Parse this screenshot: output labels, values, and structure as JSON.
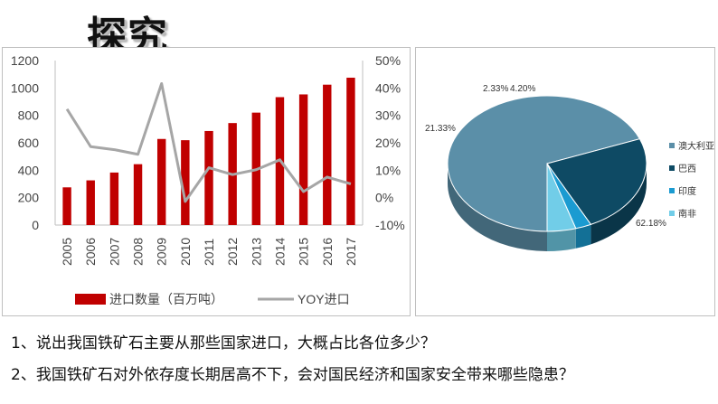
{
  "slide": {
    "title": "探究"
  },
  "questions": [
    "1、说出我国铁矿石主要从那些国家进口，大概占比各位多少？",
    "2、我国铁矿石对外依存度长期居高不下，会对国民经济和国家安全带来哪些隐患？"
  ],
  "colors": {
    "bar": "#c00000",
    "line": "#a6a6a6",
    "pie": [
      "#5b8fa8",
      "#0e4a64",
      "#1b9bd1",
      "#71cde8"
    ]
  },
  "chart_data": [
    {
      "type": "bar",
      "categories": [
        "2005",
        "2006",
        "2007",
        "2008",
        "2009",
        "2010",
        "2011",
        "2012",
        "2013",
        "2014",
        "2015",
        "2016",
        "2017"
      ],
      "series": [
        {
          "name": "进口数量（百万吨）",
          "type": "bar",
          "axis": "left",
          "values": [
            275,
            326,
            383,
            444,
            628,
            619,
            686,
            744,
            820,
            933,
            953,
            1024,
            1075
          ]
        },
        {
          "name": "YOY进口",
          "type": "line",
          "axis": "right",
          "values": [
            32.3,
            18.6,
            17.5,
            15.8,
            41.6,
            -1.4,
            10.9,
            8.4,
            10.2,
            13.8,
            2.2,
            7.5,
            5.0
          ]
        }
      ],
      "y_left": {
        "ylim": [
          0,
          1200
        ],
        "ticks": [
          "0",
          "200",
          "400",
          "600",
          "800",
          "1000",
          "1200"
        ]
      },
      "y_right": {
        "ylim": [
          -10,
          50
        ],
        "ticks": [
          "-10%",
          "0%",
          "10%",
          "20%",
          "30%",
          "40%",
          "50%"
        ]
      },
      "legend_position": "bottom"
    },
    {
      "type": "pie",
      "labels": [
        "澳大利亚",
        "巴西",
        "印度",
        "南非"
      ],
      "values": [
        62.18,
        21.33,
        2.33,
        4.2
      ],
      "value_labels": [
        "62.18%",
        "21.33%",
        "2.33%",
        "4.20%"
      ],
      "legend_position": "right"
    }
  ]
}
